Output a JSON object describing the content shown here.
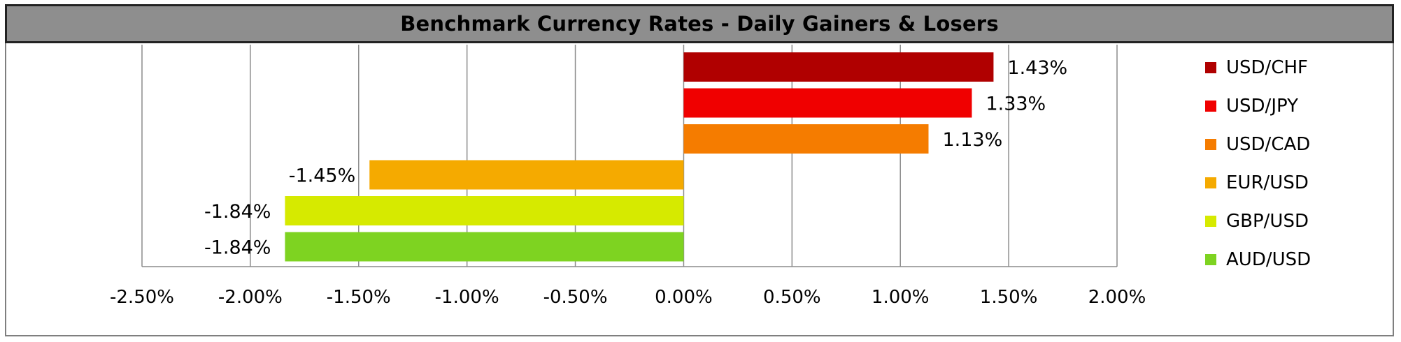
{
  "chart_data": {
    "type": "bar",
    "orientation": "horizontal",
    "title": "Benchmark Currency Rates - Daily Gainers & Losers",
    "categories": [
      "USD/CHF",
      "USD/JPY",
      "USD/CAD",
      "EUR/USD",
      "GBP/USD",
      "AUD/USD"
    ],
    "values": [
      1.43,
      1.33,
      1.13,
      -1.45,
      -1.84,
      -1.84
    ],
    "data_labels": [
      "1.43%",
      "1.33%",
      "1.13%",
      "-1.45%",
      "-1.84%",
      "-1.84%"
    ],
    "colors": [
      "#b00000",
      "#f00000",
      "#f57c00",
      "#f5aa00",
      "#d6ea00",
      "#7ed321"
    ],
    "xlim": [
      -2.5,
      2.0
    ],
    "x_ticks": [
      -2.5,
      -2.0,
      -1.5,
      -1.0,
      -0.5,
      0.0,
      0.5,
      1.0,
      1.5,
      2.0
    ],
    "x_tick_labels": [
      "-2.50%",
      "-2.00%",
      "-1.50%",
      "-1.00%",
      "-0.50%",
      "0.00%",
      "0.50%",
      "1.00%",
      "1.50%",
      "2.00%"
    ],
    "grid": "vertical",
    "legend_position": "right",
    "xlabel": "",
    "ylabel": ""
  }
}
